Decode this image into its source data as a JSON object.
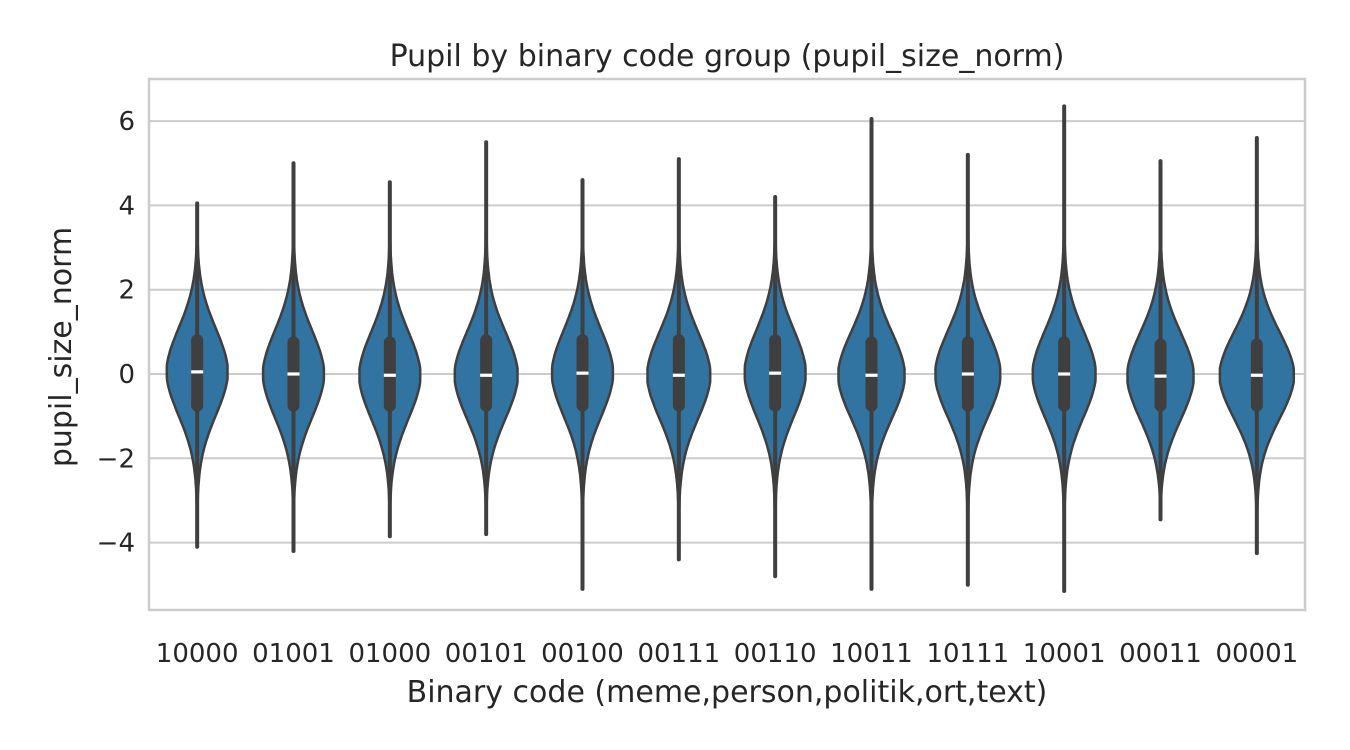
{
  "chart_data": {
    "type": "violin",
    "title": "Pupil by binary code group (pupil_size_norm)",
    "xlabel": "Binary code (meme,person,politik,ort,text)",
    "ylabel": "pupil_size_norm",
    "ylim": [
      -5.6,
      7.0
    ],
    "yticks": [
      6,
      4,
      2,
      0,
      -2,
      -4
    ],
    "ytick_labels": [
      "6",
      "4",
      "2",
      "0",
      "−2",
      "−4"
    ],
    "grid": true,
    "color": "#3274a1",
    "edge_color": "#3f3f3f",
    "categories": [
      "10000",
      "01001",
      "01000",
      "00101",
      "00100",
      "00111",
      "00110",
      "10011",
      "10111",
      "10001",
      "00011",
      "00001"
    ],
    "groups": [
      {
        "code": "10000",
        "min": -4.1,
        "q1": -0.75,
        "median": 0.05,
        "q3": 0.8,
        "max": 4.05,
        "width_scale": 0.92
      },
      {
        "code": "01001",
        "min": -4.2,
        "q1": -0.75,
        "median": 0.0,
        "q3": 0.75,
        "max": 5.0,
        "width_scale": 0.92
      },
      {
        "code": "01000",
        "min": -3.85,
        "q1": -0.75,
        "median": -0.03,
        "q3": 0.75,
        "max": 4.55,
        "width_scale": 0.92
      },
      {
        "code": "00101",
        "min": -3.8,
        "q1": -0.75,
        "median": -0.03,
        "q3": 0.8,
        "max": 5.5,
        "width_scale": 0.95
      },
      {
        "code": "00100",
        "min": -5.1,
        "q1": -0.75,
        "median": 0.02,
        "q3": 0.8,
        "max": 4.6,
        "width_scale": 0.92
      },
      {
        "code": "00111",
        "min": -4.4,
        "q1": -0.75,
        "median": -0.03,
        "q3": 0.8,
        "max": 5.1,
        "width_scale": 0.95
      },
      {
        "code": "00110",
        "min": -4.8,
        "q1": -0.75,
        "median": 0.02,
        "q3": 0.8,
        "max": 4.2,
        "width_scale": 0.92
      },
      {
        "code": "10011",
        "min": -5.1,
        "q1": -0.75,
        "median": -0.03,
        "q3": 0.75,
        "max": 6.05,
        "width_scale": 1.0
      },
      {
        "code": "10111",
        "min": -5.0,
        "q1": -0.75,
        "median": 0.0,
        "q3": 0.75,
        "max": 5.2,
        "width_scale": 0.98
      },
      {
        "code": "10001",
        "min": -5.15,
        "q1": -0.75,
        "median": 0.0,
        "q3": 0.75,
        "max": 6.35,
        "width_scale": 0.95
      },
      {
        "code": "00011",
        "min": -3.45,
        "q1": -0.75,
        "median": -0.05,
        "q3": 0.7,
        "max": 5.05,
        "width_scale": 1.0
      },
      {
        "code": "00001",
        "min": -4.25,
        "q1": -0.75,
        "median": -0.03,
        "q3": 0.7,
        "max": 5.6,
        "width_scale": 1.12
      }
    ]
  }
}
